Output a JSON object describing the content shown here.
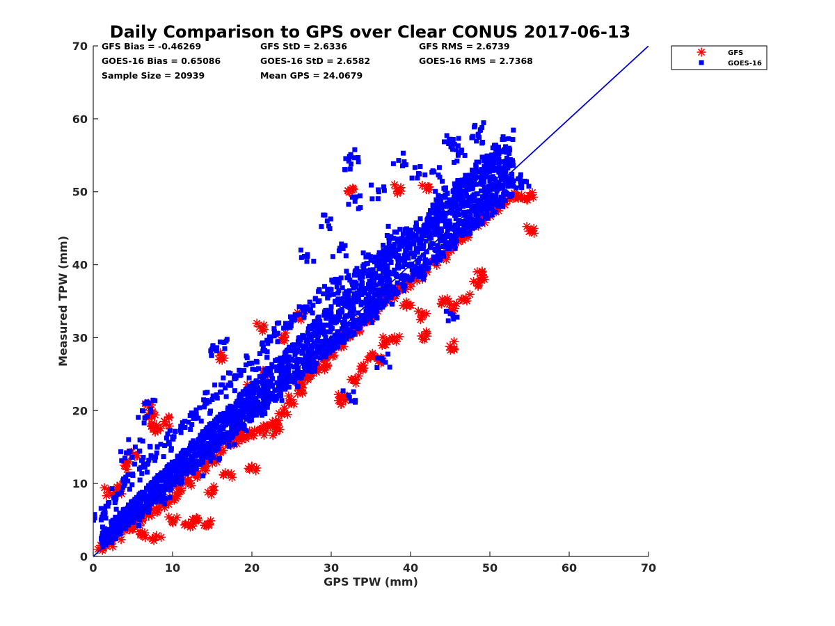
{
  "chart_data": {
    "type": "scatter",
    "title": "Daily Comparison to GPS over Clear CONUS 2017-06-13",
    "xlabel": "GPS TPW (mm)",
    "ylabel": "Measured TPW (mm)",
    "xlim": [
      0,
      70
    ],
    "ylim": [
      0,
      70
    ],
    "xticks": [
      "0",
      "10",
      "20",
      "30",
      "40",
      "50",
      "60",
      "70"
    ],
    "yticks": [
      "0",
      "10",
      "20",
      "30",
      "40",
      "50",
      "60",
      "70"
    ],
    "grid": false,
    "legend_position": "outside-top-right",
    "stats": [
      [
        "GFS Bias = -0.46269",
        "GFS StD = 2.6336",
        "GFS RMS = 2.6739"
      ],
      [
        "GOES-16 Bias = 0.65086",
        "GOES-16 StD = 2.6582",
        "GOES-16 RMS = 2.7368"
      ],
      [
        "Sample Size = 20939",
        "Mean GPS = 24.0679",
        ""
      ]
    ],
    "reference_line": {
      "name": "1:1",
      "x": [
        0,
        70
      ],
      "y": [
        0,
        70
      ],
      "color": "#0000dd"
    },
    "series": [
      {
        "name": "GFS",
        "marker": "asterisk",
        "color": "#ff0000",
        "sample_size": 20939,
        "bias": -0.46269,
        "std": 2.6336,
        "points": [
          [
            1,
            1.5
          ],
          [
            2,
            1.8
          ],
          [
            3,
            2.8
          ],
          [
            4,
            3.6
          ],
          [
            5,
            4.2
          ],
          [
            6,
            4.8
          ],
          [
            7,
            5.6
          ],
          [
            8,
            6.5
          ],
          [
            9,
            7.3
          ],
          [
            10,
            8.2
          ],
          [
            11,
            9.3
          ],
          [
            12,
            10.4
          ],
          [
            13,
            11.3
          ],
          [
            14,
            12.3
          ],
          [
            15,
            13.2
          ],
          [
            16,
            14.3
          ],
          [
            17,
            15.5
          ],
          [
            18,
            16.1
          ],
          [
            19,
            16.4
          ],
          [
            20,
            16.7
          ],
          [
            21,
            17.2
          ],
          [
            22,
            17.8
          ],
          [
            23,
            18.6
          ],
          [
            24,
            19.8
          ],
          [
            25,
            21.5
          ],
          [
            26,
            22.8
          ],
          [
            27,
            24.3
          ],
          [
            28,
            25.8
          ],
          [
            29,
            27.1
          ],
          [
            30,
            28
          ],
          [
            31,
            29
          ],
          [
            32,
            30.2
          ],
          [
            33,
            31.2
          ],
          [
            34,
            32.1
          ],
          [
            35,
            33.2
          ],
          [
            36,
            34.1
          ],
          [
            37,
            35
          ],
          [
            38,
            35.9
          ],
          [
            39,
            36.8
          ],
          [
            40,
            37.6
          ],
          [
            41,
            38.4
          ],
          [
            42,
            39.5
          ],
          [
            43,
            40.4
          ],
          [
            44,
            41.3
          ],
          [
            45,
            42.2
          ],
          [
            46,
            43.2
          ],
          [
            47,
            44.3
          ],
          [
            48,
            45.3
          ],
          [
            49,
            46.2
          ],
          [
            50,
            47
          ],
          [
            51,
            47.9
          ],
          [
            52,
            48.7
          ],
          [
            53,
            49.2
          ],
          [
            54,
            49.5
          ],
          [
            55,
            49.4
          ],
          [
            7,
            20.5
          ],
          [
            7.3,
            19.2
          ],
          [
            7.6,
            17.5
          ],
          [
            8,
            18
          ],
          [
            9,
            18.5
          ],
          [
            5,
            14
          ],
          [
            16,
            27.5
          ],
          [
            20,
            12.3
          ],
          [
            14.5,
            4.3
          ],
          [
            12,
            4.5
          ],
          [
            32.3,
            50
          ],
          [
            38.3,
            50.4
          ],
          [
            42,
            50.4
          ],
          [
            55,
            44.6
          ],
          [
            45,
            28.8
          ],
          [
            42,
            30.2
          ],
          [
            36.4,
            26.8
          ],
          [
            34,
            25.8
          ],
          [
            33,
            24.3
          ],
          [
            31.8,
            21.4
          ],
          [
            47,
            35.4
          ],
          [
            48.5,
            37.5
          ],
          [
            49,
            38.5
          ],
          [
            45.5,
            34
          ],
          [
            44.4,
            35
          ],
          [
            41.5,
            33
          ],
          [
            39.5,
            34.3
          ],
          [
            38,
            30
          ],
          [
            31.3,
            21.6
          ],
          [
            21,
            31.5
          ],
          [
            24,
            30
          ],
          [
            26,
            33
          ],
          [
            22,
            25
          ],
          [
            19.8,
            23
          ],
          [
            2,
            8.8
          ],
          [
            3,
            9.2
          ],
          [
            4,
            12.5
          ],
          [
            6,
            3
          ],
          [
            8,
            2.8
          ],
          [
            10,
            4.8
          ],
          [
            13,
            5.2
          ],
          [
            15,
            9
          ],
          [
            17,
            11.3
          ],
          [
            18.5,
            17
          ],
          [
            23,
            17.2
          ],
          [
            26,
            23.8
          ],
          [
            27,
            24.8
          ],
          [
            29,
            26
          ],
          [
            35,
            27.5
          ],
          [
            37,
            29.5
          ]
        ]
      },
      {
        "name": "GOES-16",
        "marker": "square",
        "color": "#0000ff",
        "sample_size": 20939,
        "bias": 0.65086,
        "std": 2.6582,
        "points": [
          [
            1,
            5
          ],
          [
            1.5,
            6
          ],
          [
            2,
            7.4
          ],
          [
            3,
            8.5
          ],
          [
            4,
            10
          ],
          [
            5,
            11.1
          ],
          [
            6,
            12.2
          ],
          [
            7,
            13.2
          ],
          [
            8,
            14.2
          ],
          [
            9,
            15.2
          ],
          [
            10,
            16.3
          ],
          [
            11,
            17.3
          ],
          [
            12,
            18.4
          ],
          [
            13,
            19.5
          ],
          [
            14,
            20.5
          ],
          [
            15,
            21.5
          ],
          [
            16,
            22.5
          ],
          [
            17,
            23.5
          ],
          [
            18,
            24.5
          ],
          [
            19,
            25.5
          ],
          [
            20,
            26.5
          ],
          [
            21,
            27.8
          ],
          [
            22,
            29.2
          ],
          [
            23,
            30.4
          ],
          [
            24,
            31.3
          ],
          [
            25,
            32.2
          ],
          [
            26,
            33.2
          ],
          [
            27,
            34.2
          ],
          [
            28,
            35.3
          ],
          [
            29,
            36
          ],
          [
            30,
            36.6
          ],
          [
            31,
            37.5
          ],
          [
            32,
            38.2
          ],
          [
            33,
            39
          ],
          [
            34,
            39.8
          ],
          [
            35,
            40.6
          ],
          [
            36,
            41.3
          ],
          [
            37,
            42.1
          ],
          [
            38,
            42.8
          ],
          [
            39,
            43.4
          ],
          [
            40,
            44
          ],
          [
            41,
            44.6
          ],
          [
            42,
            45.3
          ],
          [
            43,
            46.1
          ],
          [
            44,
            47
          ],
          [
            45,
            48
          ],
          [
            46,
            49
          ],
          [
            47,
            50
          ],
          [
            48,
            51
          ],
          [
            49,
            52.5
          ],
          [
            50,
            53.5
          ],
          [
            51,
            54
          ],
          [
            52,
            52
          ],
          [
            53,
            51.5
          ],
          [
            54,
            51
          ],
          [
            2,
            2.5
          ],
          [
            3,
            4
          ],
          [
            5,
            5
          ],
          [
            7,
            6.5
          ],
          [
            9,
            8
          ],
          [
            11,
            10
          ],
          [
            13,
            12
          ],
          [
            15,
            14
          ],
          [
            17,
            16
          ],
          [
            19,
            18
          ],
          [
            21,
            20
          ],
          [
            23,
            22
          ],
          [
            25,
            24
          ],
          [
            27,
            26
          ],
          [
            29,
            28
          ],
          [
            31,
            30
          ],
          [
            33,
            31.5
          ],
          [
            35,
            33
          ],
          [
            37,
            35
          ],
          [
            39,
            37
          ],
          [
            41,
            39
          ],
          [
            43,
            41
          ],
          [
            45,
            43
          ],
          [
            47,
            45
          ],
          [
            49,
            47
          ],
          [
            51,
            48
          ],
          [
            32.5,
            54.8
          ],
          [
            32.5,
            53.8
          ],
          [
            38.5,
            54.3
          ],
          [
            45,
            57.2
          ],
          [
            46,
            56.3
          ],
          [
            49,
            58.8
          ],
          [
            48.5,
            57.7
          ],
          [
            50.5,
            55
          ],
          [
            52,
            54.2
          ],
          [
            43.5,
            52.3
          ],
          [
            36,
            50
          ],
          [
            33,
            48.7
          ],
          [
            29.5,
            46
          ],
          [
            27,
            41.4
          ],
          [
            31,
            41.9
          ],
          [
            16,
            29.4
          ],
          [
            15.5,
            28.5
          ],
          [
            7,
            21
          ],
          [
            6.5,
            19
          ],
          [
            5.3,
            15
          ],
          [
            4,
            13.5
          ],
          [
            36.5,
            26.9
          ],
          [
            32.3,
            21.8
          ],
          [
            45,
            33.3
          ],
          [
            41,
            52.5
          ],
          [
            43.5,
            49.5
          ],
          [
            38,
            44.5
          ],
          [
            46,
            55
          ]
        ]
      }
    ]
  }
}
